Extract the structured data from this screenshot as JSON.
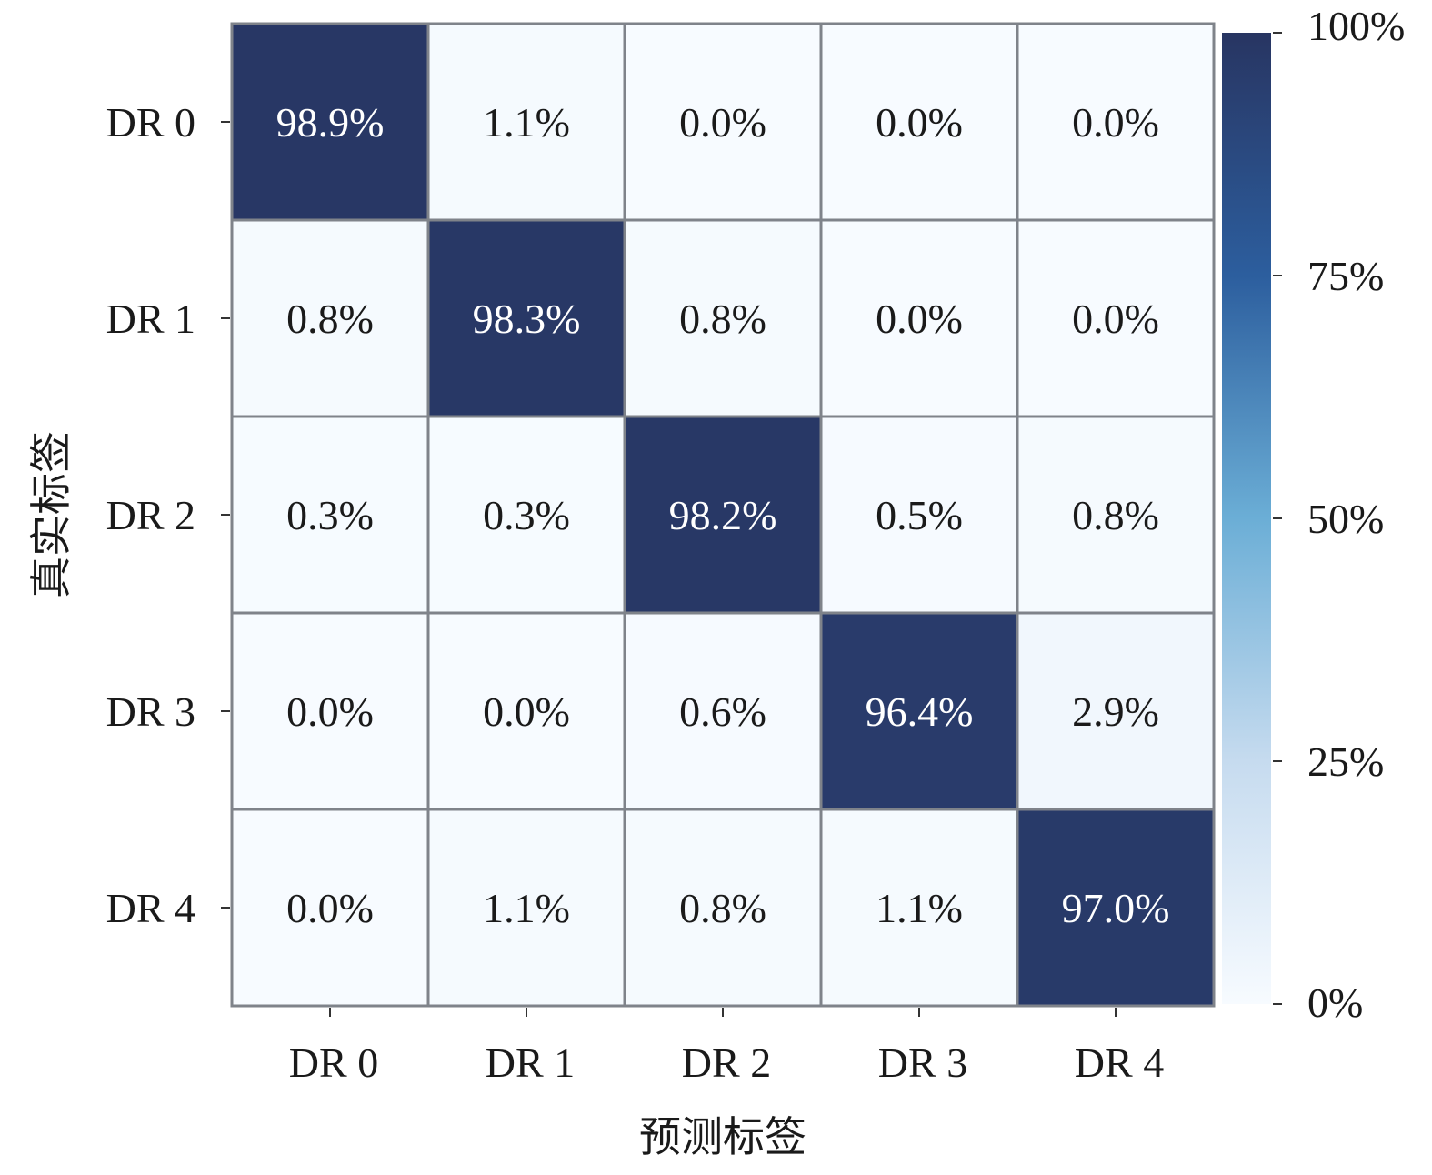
{
  "chart_data": {
    "type": "heatmap",
    "xlabel": "预测标签",
    "ylabel": "真实标签",
    "x_categories": [
      "DR 0",
      "DR 1",
      "DR 2",
      "DR 3",
      "DR 4"
    ],
    "y_categories": [
      "DR 0",
      "DR 1",
      "DR 2",
      "DR 3",
      "DR 4"
    ],
    "values": [
      [
        98.9,
        1.1,
        0.0,
        0.0,
        0.0
      ],
      [
        0.8,
        98.3,
        0.8,
        0.0,
        0.0
      ],
      [
        0.3,
        0.3,
        98.2,
        0.5,
        0.8
      ],
      [
        0.0,
        0.0,
        0.6,
        96.4,
        2.9
      ],
      [
        0.0,
        1.1,
        0.8,
        1.1,
        97.0
      ]
    ],
    "cell_labels": [
      [
        "98.9%",
        "1.1%",
        "0.0%",
        "0.0%",
        "0.0%"
      ],
      [
        "0.8%",
        "98.3%",
        "0.8%",
        "0.0%",
        "0.0%"
      ],
      [
        "0.3%",
        "0.3%",
        "98.2%",
        "0.5%",
        "0.8%"
      ],
      [
        "0.0%",
        "0.0%",
        "0.6%",
        "96.4%",
        "2.9%"
      ],
      [
        "0.0%",
        "1.1%",
        "0.8%",
        "1.1%",
        "97.0%"
      ]
    ],
    "colorbar": {
      "range": [
        0,
        100
      ],
      "ticks": [
        0,
        25,
        50,
        75,
        100
      ],
      "tick_labels": [
        "0%",
        "25%",
        "50%",
        "75%",
        "100%"
      ],
      "colors": [
        "#f7fbff",
        "#c6dbef",
        "#6baed6",
        "#2c5e9e",
        "#283562"
      ]
    },
    "grid": true,
    "legend": "right"
  }
}
